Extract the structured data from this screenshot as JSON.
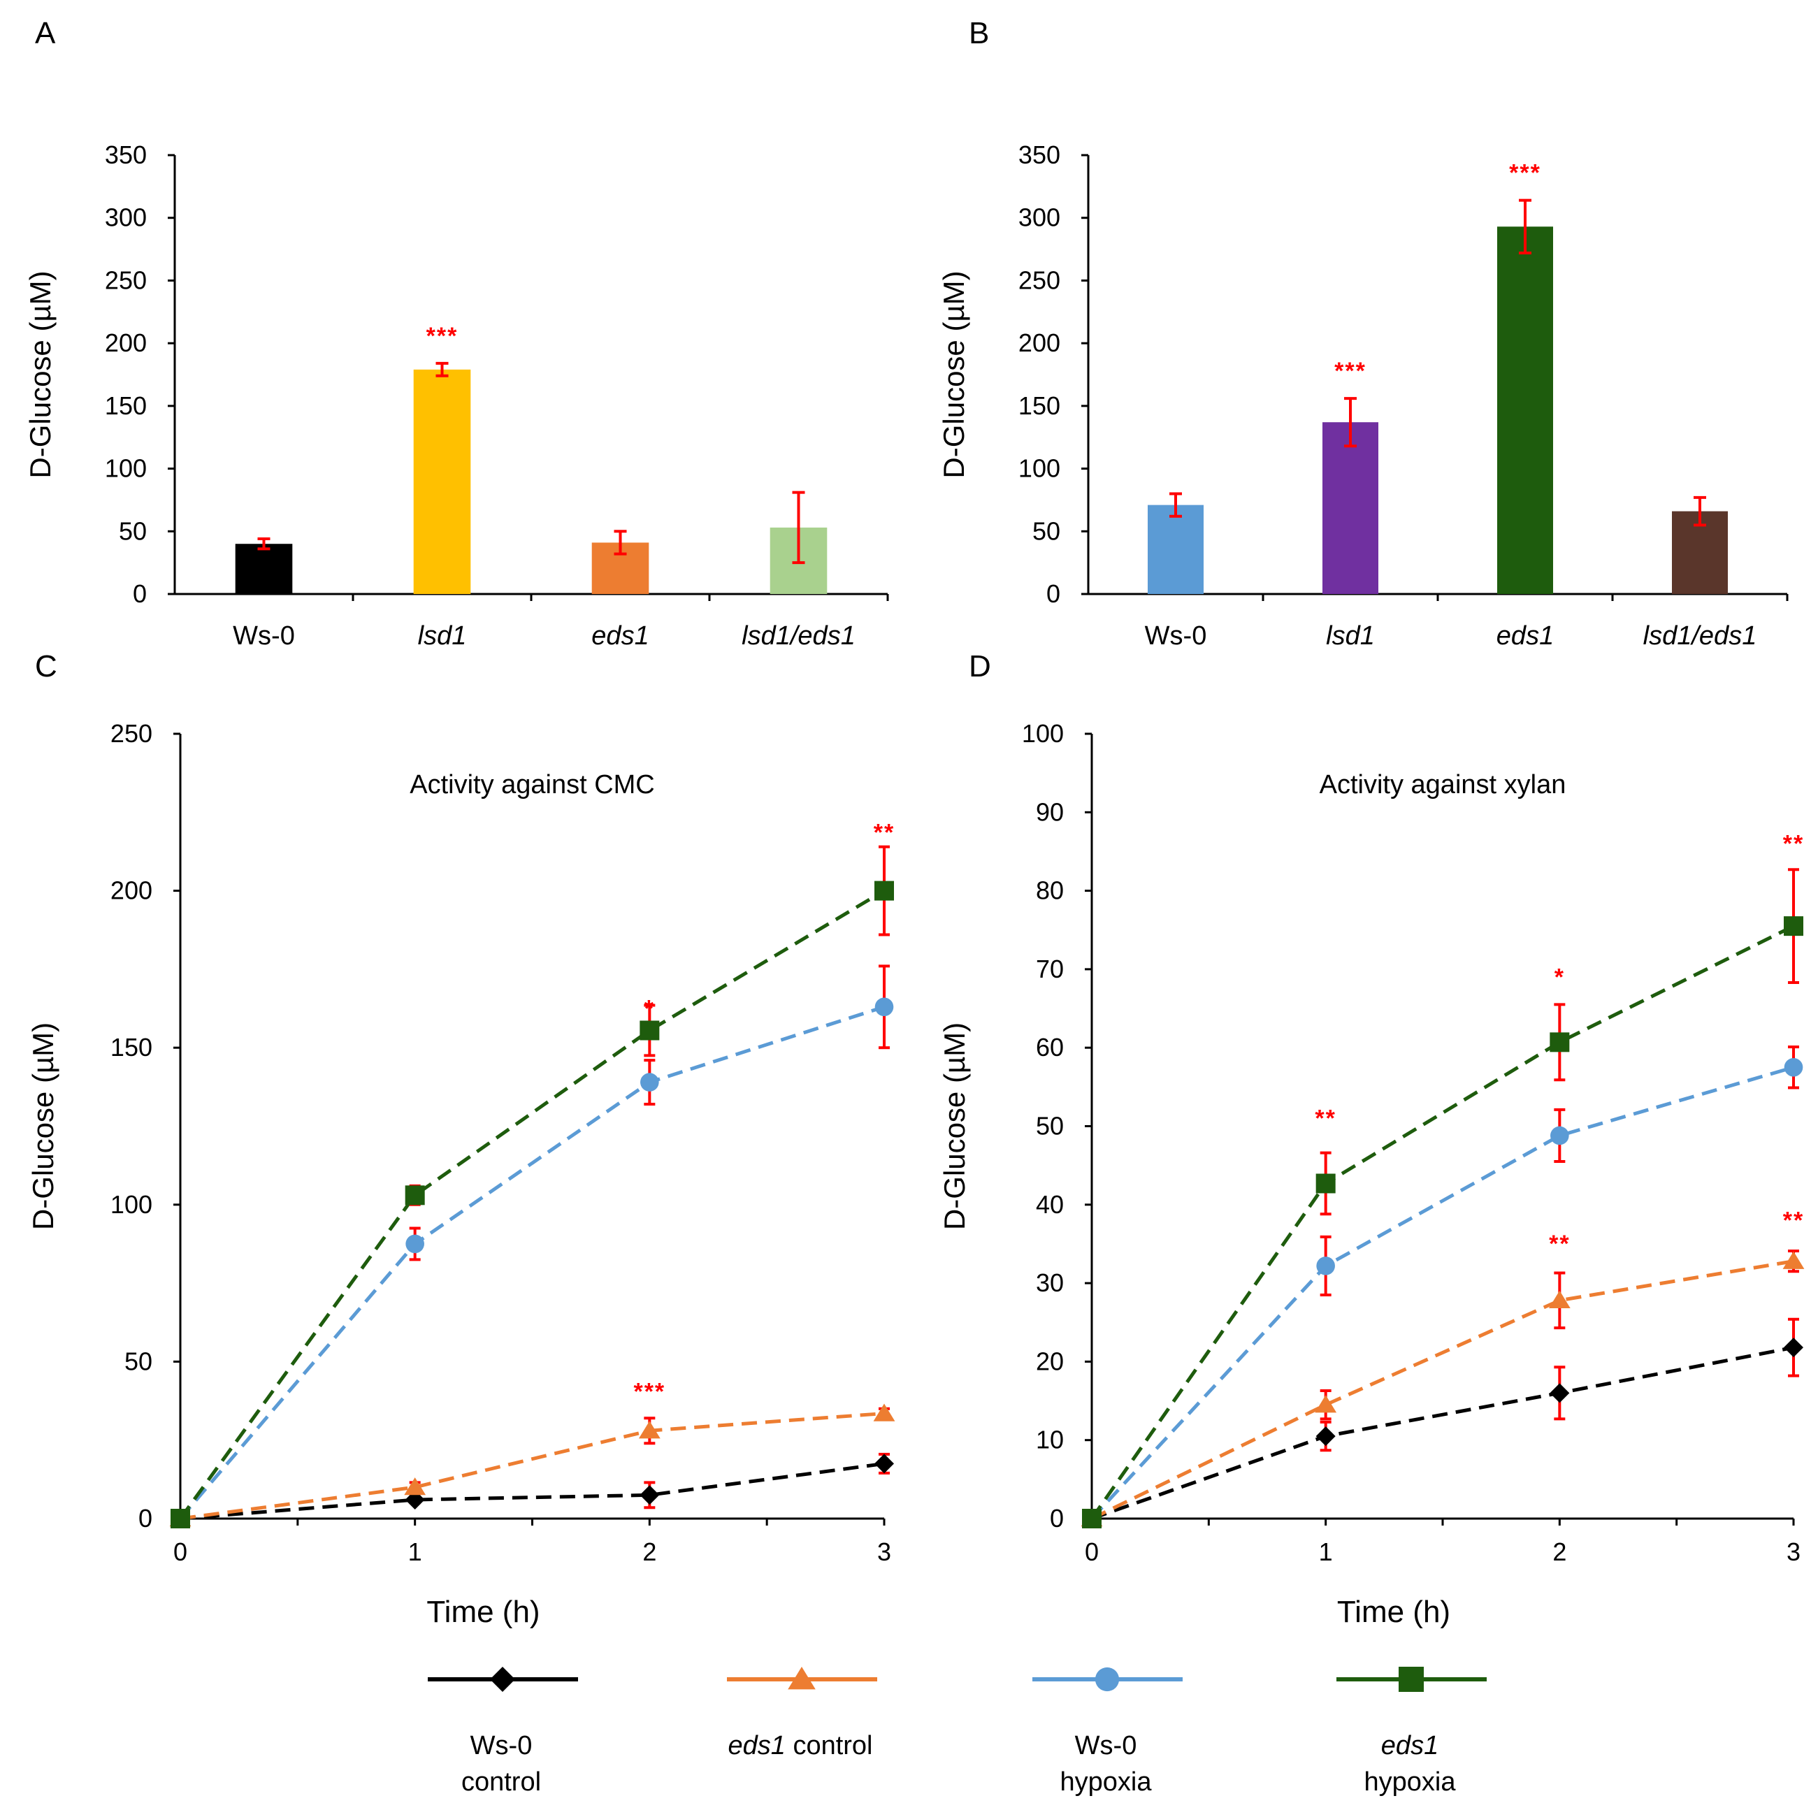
{
  "chart_data": [
    {
      "panel": "A",
      "type": "bar",
      "title": "",
      "xlabel": "",
      "ylabel": "D-Glucose (µM)",
      "ylim": [
        0,
        350
      ],
      "yticks": [
        0,
        50,
        100,
        150,
        200,
        250,
        300,
        350
      ],
      "categories": [
        "Ws-0",
        "lsd1",
        "eds1",
        "lsd1/eds1"
      ],
      "italic_categories": [
        false,
        true,
        true,
        true
      ],
      "values": [
        40,
        179,
        41,
        53
      ],
      "errors": [
        4,
        5,
        9,
        28
      ],
      "colors": [
        "#000000",
        "#ffc000",
        "#ed7d31",
        "#a9d18e"
      ],
      "significance": [
        "",
        "***",
        "",
        ""
      ],
      "grid": false
    },
    {
      "panel": "B",
      "type": "bar",
      "title": "",
      "xlabel": "",
      "ylabel": "D-Glucose (µM)",
      "ylim": [
        0,
        350
      ],
      "yticks": [
        0,
        50,
        100,
        150,
        200,
        250,
        300,
        350
      ],
      "categories": [
        "Ws-0",
        "lsd1",
        "eds1",
        "lsd1/eds1"
      ],
      "italic_categories": [
        false,
        true,
        true,
        true
      ],
      "values": [
        71,
        137,
        293,
        66
      ],
      "errors": [
        9,
        19,
        21,
        11
      ],
      "colors": [
        "#5b9bd5",
        "#7030a0",
        "#1e5c0d",
        "#5a362b"
      ],
      "significance": [
        "",
        "***",
        "***",
        ""
      ],
      "grid": false
    },
    {
      "panel": "C",
      "type": "line",
      "title": "Activity against CMC",
      "xlabel": "Time (h)",
      "ylabel": "D-Glucose (µM)",
      "xlim": [
        0,
        3
      ],
      "xticks": [
        0,
        1,
        2,
        3
      ],
      "ylim": [
        0,
        250
      ],
      "yticks": [
        0,
        50,
        100,
        150,
        200,
        250
      ],
      "x": [
        0,
        1,
        2,
        3
      ],
      "series": [
        {
          "name": "Ws-0 control",
          "values": [
            0,
            6,
            7.5,
            17.5
          ],
          "errors": [
            0,
            1,
            4,
            3
          ],
          "color": "#000000",
          "marker": "diamond"
        },
        {
          "name": "eds1 control",
          "values": [
            0,
            10,
            28,
            33.5
          ],
          "errors": [
            0,
            1.5,
            4,
            1.5
          ],
          "color": "#ed7d31",
          "marker": "triangle"
        },
        {
          "name": "Ws-0 hypoxia",
          "values": [
            0,
            87.5,
            139,
            163
          ],
          "errors": [
            0,
            5,
            7,
            13
          ],
          "color": "#5b9bd5",
          "marker": "circle"
        },
        {
          "name": "eds1 hypoxia",
          "values": [
            0,
            103,
            155.5,
            200
          ],
          "errors": [
            0,
            3,
            8,
            14
          ],
          "color": "#1e5c0d",
          "marker": "square"
        }
      ],
      "annotations": [
        {
          "x": 2,
          "y": 160,
          "text": "*"
        },
        {
          "x": 3,
          "y": 216,
          "text": "**"
        },
        {
          "x": 2,
          "y": 38,
          "text": "***"
        }
      ],
      "grid": false
    },
    {
      "panel": "D",
      "type": "line",
      "title": "Activity against xylan",
      "xlabel": "Time (h)",
      "ylabel": "D-Glucose (µM)",
      "xlim": [
        0,
        3
      ],
      "xticks": [
        0,
        1,
        2,
        3
      ],
      "ylim": [
        0,
        100
      ],
      "yticks": [
        0,
        10,
        20,
        30,
        40,
        50,
        60,
        70,
        80,
        90,
        100
      ],
      "x": [
        0,
        1,
        2,
        3
      ],
      "series": [
        {
          "name": "Ws-0 control",
          "values": [
            0,
            10.5,
            16,
            21.8
          ],
          "errors": [
            0,
            1.8,
            3.3,
            3.6
          ],
          "color": "#000000",
          "marker": "diamond"
        },
        {
          "name": "eds1 control",
          "values": [
            0,
            14.5,
            27.8,
            32.8
          ],
          "errors": [
            0,
            1.8,
            3.5,
            1.3
          ],
          "color": "#ed7d31",
          "marker": "triangle"
        },
        {
          "name": "Ws-0 hypoxia",
          "values": [
            0,
            32.2,
            48.8,
            57.5
          ],
          "errors": [
            0,
            3.7,
            3.3,
            2.6
          ],
          "color": "#5b9bd5",
          "marker": "circle"
        },
        {
          "name": "eds1 hypoxia",
          "values": [
            0,
            42.7,
            60.7,
            75.5
          ],
          "errors": [
            0,
            3.9,
            4.8,
            7.2
          ],
          "color": "#1e5c0d",
          "marker": "square"
        }
      ],
      "annotations": [
        {
          "x": 1,
          "y": 50,
          "text": "**"
        },
        {
          "x": 2,
          "y": 68,
          "text": "*"
        },
        {
          "x": 3,
          "y": 85,
          "text": "**"
        },
        {
          "x": 2,
          "y": 34,
          "text": "**"
        },
        {
          "x": 3,
          "y": 37,
          "text": "**"
        }
      ],
      "grid": false
    }
  ],
  "legend": {
    "placement": "bottom",
    "entries": [
      {
        "line1": "Ws-0",
        "line1_italic": false,
        "line2": "control",
        "color": "#000000",
        "marker": "diamond"
      },
      {
        "line1": "eds1",
        "line1_italic": true,
        "line2": " control",
        "color": "#ed7d31",
        "marker": "triangle",
        "single_line": true
      },
      {
        "line1": "Ws-0",
        "line1_italic": false,
        "line2": "hypoxia",
        "color": "#5b9bd5",
        "marker": "circle"
      },
      {
        "line1": "eds1",
        "line1_italic": true,
        "line2": "hypoxia",
        "color": "#1e5c0d",
        "marker": "square"
      }
    ]
  },
  "error_bar_color": "#ff0000",
  "significance_color": "#ff0000"
}
